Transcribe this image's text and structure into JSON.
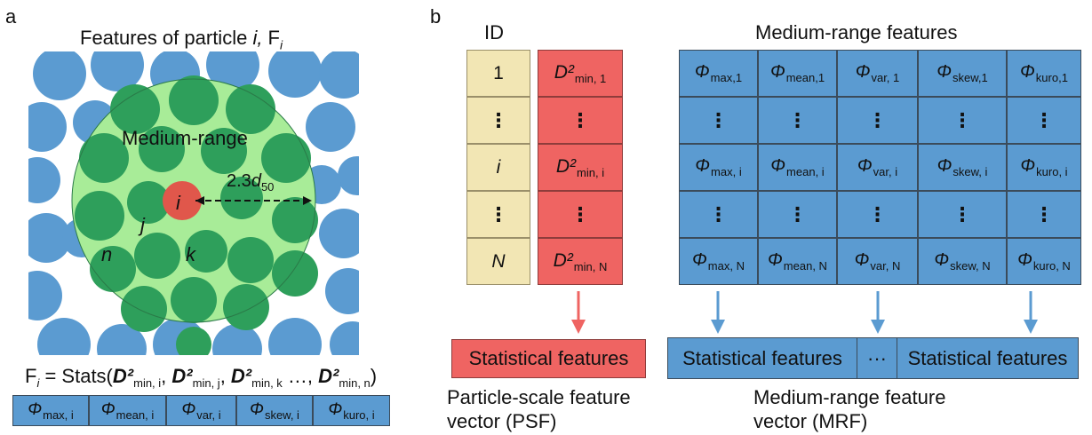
{
  "panel_a": {
    "letter": "a",
    "title_prefix": "Features of particle ",
    "title_i": "i,",
    "title_F": " F",
    "title_sub": "i",
    "medium_label": "Medium-range",
    "radius_prefix": "2.3",
    "radius_d": "d",
    "radius_sub": "50",
    "label_i": "i",
    "label_j": "j",
    "label_k": "k",
    "label_n": "n",
    "formula": {
      "lhs": "F",
      "lhs_sub": "i",
      "eq": " = Stats(",
      "terms": [
        {
          "sym": "D²",
          "sub": "min, i",
          "sep": ", "
        },
        {
          "sym": "D²",
          "sub": "min, j",
          "sep": ", "
        },
        {
          "sym": "D²",
          "sub": "min, k",
          "sep": " …, "
        },
        {
          "sym": "D²",
          "sub": "min, n",
          "sep": ")"
        }
      ]
    },
    "feature_row": [
      {
        "sym": "Φ",
        "sub": "max, i"
      },
      {
        "sym": "Φ",
        "sub": "mean, i"
      },
      {
        "sym": "Φ",
        "sub": "var, i"
      },
      {
        "sym": "Φ",
        "sub": "skew, i"
      },
      {
        "sym": "Φ",
        "sub": "kuro, i"
      }
    ]
  },
  "panel_b": {
    "letter": "b",
    "id_title": "ID",
    "medium_title": "Medium-range features",
    "id_column": [
      "1",
      "⋮",
      "i",
      "⋮",
      "N"
    ],
    "d2_column": [
      {
        "sym": "D²",
        "sub": "min, 1"
      },
      {
        "sym": "⋮",
        "sub": ""
      },
      {
        "sym": "D²",
        "sub": "min, i"
      },
      {
        "sym": "⋮",
        "sub": ""
      },
      {
        "sym": "D²",
        "sub": "min, N"
      }
    ],
    "phi_table": [
      [
        {
          "sym": "Φ",
          "sub": "max,1"
        },
        {
          "sym": "Φ",
          "sub": "mean,1"
        },
        {
          "sym": "Φ",
          "sub": "var, 1"
        },
        {
          "sym": "Φ",
          "sub": "skew,1"
        },
        {
          "sym": "Φ",
          "sub": "kuro,1"
        }
      ],
      [
        {
          "sym": "⋮",
          "sub": ""
        },
        {
          "sym": "⋮",
          "sub": ""
        },
        {
          "sym": "⋮",
          "sub": ""
        },
        {
          "sym": "⋮",
          "sub": ""
        },
        {
          "sym": "⋮",
          "sub": ""
        }
      ],
      [
        {
          "sym": "Φ",
          "sub": "max, i"
        },
        {
          "sym": "Φ",
          "sub": "mean, i"
        },
        {
          "sym": "Φ",
          "sub": "var, i"
        },
        {
          "sym": "Φ",
          "sub": "skew, i"
        },
        {
          "sym": "Φ",
          "sub": "kuro, i"
        }
      ],
      [
        {
          "sym": "⋮",
          "sub": ""
        },
        {
          "sym": "⋮",
          "sub": ""
        },
        {
          "sym": "⋮",
          "sub": ""
        },
        {
          "sym": "⋮",
          "sub": ""
        },
        {
          "sym": "⋮",
          "sub": ""
        }
      ],
      [
        {
          "sym": "Φ",
          "sub": "max, N"
        },
        {
          "sym": "Φ",
          "sub": "mean, N"
        },
        {
          "sym": "Φ",
          "sub": "var, N"
        },
        {
          "sym": "Φ",
          "sub": "skew, N"
        },
        {
          "sym": "Φ",
          "sub": "kuro, N"
        }
      ]
    ],
    "psf_box": "Statistical features",
    "psf_caption_line1": "Particle-scale feature",
    "psf_caption_line2": "vector (PSF)",
    "mrf_box_left": "Statistical features",
    "mrf_box_mid": "···",
    "mrf_box_right": "Statistical features",
    "mrf_caption_line1": "Medium-range feature",
    "mrf_caption_line2": "vector (MRF)"
  },
  "colors": {
    "particle_blue": "#5b9bd1",
    "medium_green": "#2e9f5b",
    "halo_green": "#a8ec98",
    "center_red": "#e0574b",
    "d2_red": "#ef6462",
    "id_yellow": "#f2e6b4",
    "arrow_red": "#ef6462",
    "arrow_blue": "#5b9bd1"
  }
}
